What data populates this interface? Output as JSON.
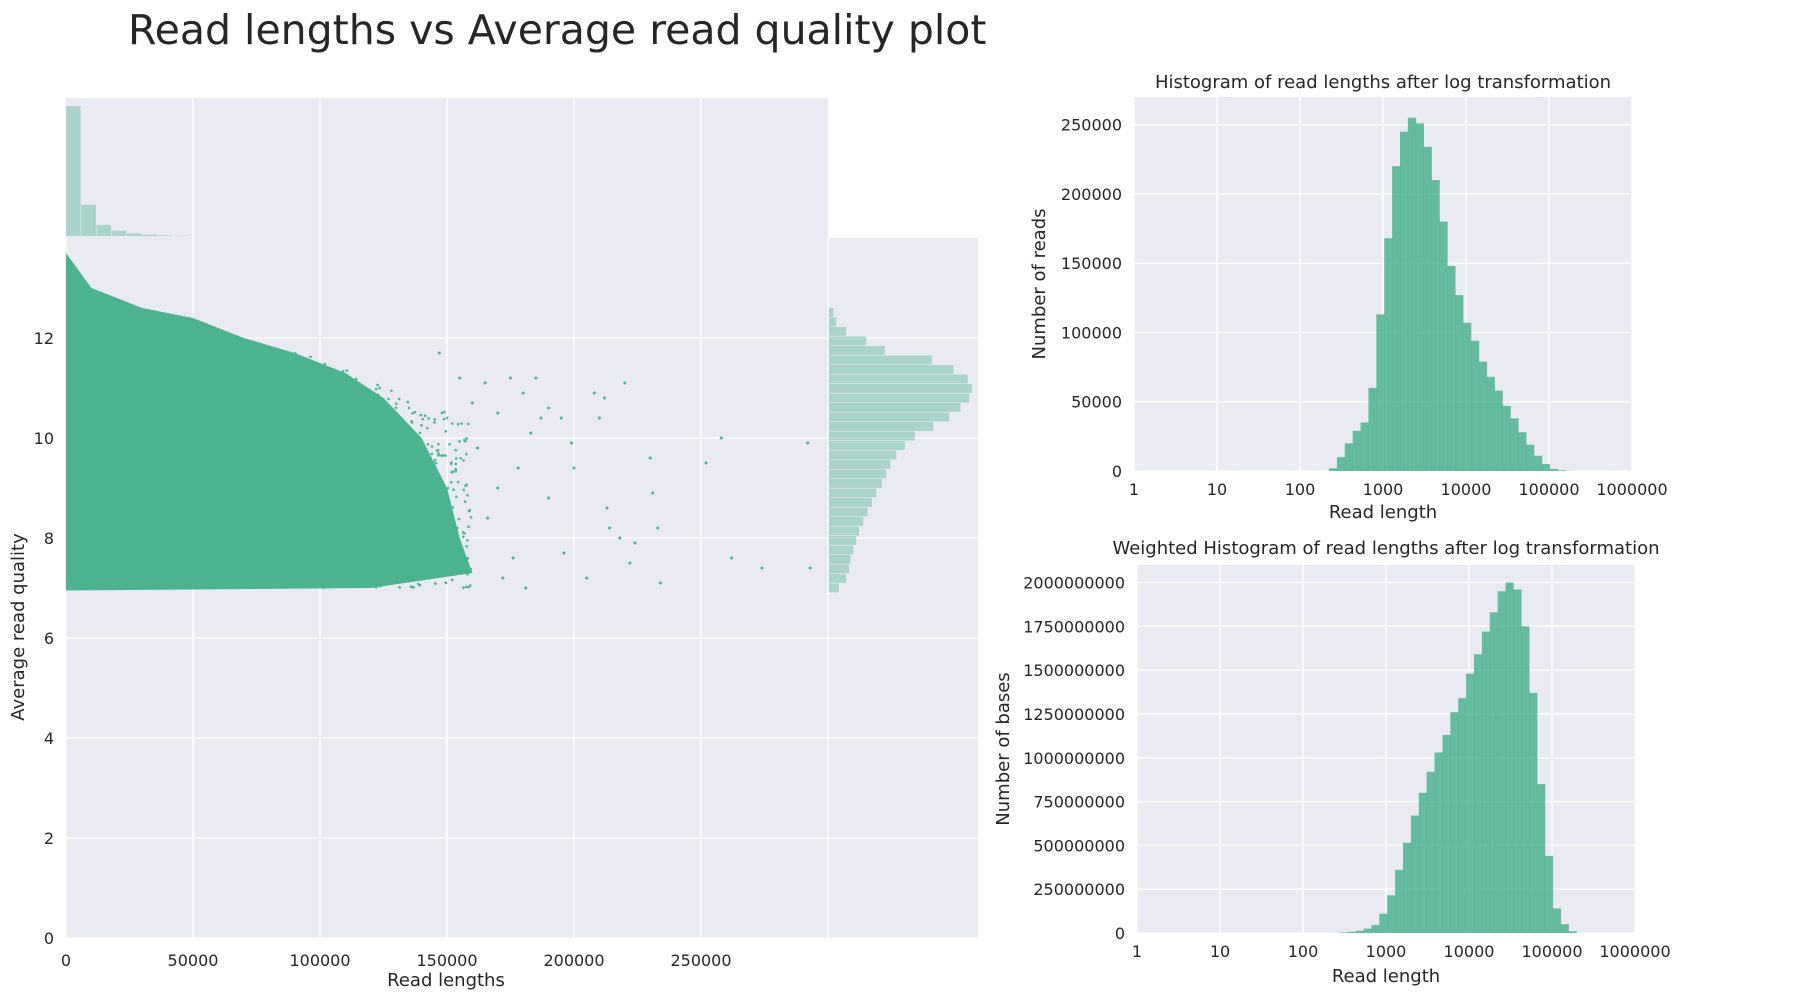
{
  "page_title": "Read lengths vs Average read quality plot",
  "colors": {
    "main": "#4cb391",
    "panel_bg": "#eaeaf2",
    "grid": "#ffffff"
  },
  "chart_data": [
    {
      "id": "scatter",
      "type": "scatter",
      "title": "",
      "xlabel": "Read lengths",
      "ylabel": "Average read quality",
      "xlim": [
        0,
        300000
      ],
      "ylim": [
        0,
        14
      ],
      "x_ticks": [
        0,
        50000,
        100000,
        150000,
        200000,
        250000
      ],
      "x_tick_labels": [
        "0",
        "50000",
        "100000",
        "150000",
        "200000",
        "250000"
      ],
      "y_ticks": [
        0,
        2,
        4,
        6,
        8,
        10,
        12
      ],
      "y_tick_labels": [
        "0",
        "2",
        "4",
        "6",
        "8",
        "10",
        "12"
      ],
      "grid": true,
      "point_color": "#4cb391",
      "dense_region": {
        "description_points": [
          [
            0,
            13.7
          ],
          [
            10000,
            13.0
          ],
          [
            30000,
            12.6
          ],
          [
            50000,
            12.4
          ],
          [
            70000,
            12.0
          ],
          [
            90000,
            11.7
          ],
          [
            110000,
            11.3
          ],
          [
            125000,
            10.8
          ],
          [
            140000,
            10.0
          ],
          [
            150000,
            9.0
          ],
          [
            155000,
            8.0
          ],
          [
            160000,
            7.3
          ],
          [
            120000,
            7.0
          ],
          [
            0,
            6.95
          ]
        ]
      },
      "outliers": [
        [
          147000,
          11.7
        ],
        [
          155000,
          11.2
        ],
        [
          160000,
          10.7
        ],
        [
          165000,
          11.1
        ],
        [
          170000,
          10.5
        ],
        [
          175000,
          11.2
        ],
        [
          180000,
          10.9
        ],
        [
          183000,
          10.1
        ],
        [
          185000,
          11.2
        ],
        [
          187000,
          10.4
        ],
        [
          190000,
          10.6
        ],
        [
          195000,
          10.4
        ],
        [
          199000,
          9.9
        ],
        [
          200000,
          9.4
        ],
        [
          208000,
          10.9
        ],
        [
          210000,
          10.4
        ],
        [
          212000,
          10.8
        ],
        [
          220000,
          11.1
        ],
        [
          218000,
          8.0
        ],
        [
          213000,
          8.6
        ],
        [
          205000,
          7.2
        ],
        [
          196000,
          7.7
        ],
        [
          190000,
          8.8
        ],
        [
          181000,
          7.0
        ],
        [
          178000,
          9.4
        ],
        [
          170000,
          9.0
        ],
        [
          166000,
          8.4
        ],
        [
          162000,
          9.8
        ],
        [
          157000,
          7.5
        ],
        [
          152000,
          8.3
        ],
        [
          176000,
          7.6
        ],
        [
          172000,
          7.2
        ],
        [
          214000,
          8.2
        ],
        [
          222000,
          7.5
        ],
        [
          224000,
          7.9
        ],
        [
          230000,
          9.6
        ],
        [
          231000,
          8.9
        ],
        [
          233000,
          8.2
        ],
        [
          234000,
          7.1
        ],
        [
          252000,
          9.5
        ],
        [
          258000,
          10.0
        ],
        [
          262000,
          7.6
        ],
        [
          274000,
          7.4
        ],
        [
          292000,
          9.9
        ],
        [
          293000,
          7.4
        ]
      ]
    },
    {
      "id": "top_marginal",
      "type": "bar",
      "title": "",
      "orientation": "vertical",
      "description": "marginal distribution of read lengths (relative counts)",
      "bin_width": 6000,
      "bin_starts": [
        0,
        6000,
        12000,
        18000,
        24000,
        30000,
        36000,
        42000
      ],
      "values": [
        1.0,
        0.24,
        0.085,
        0.04,
        0.02,
        0.01,
        0.005,
        0.002
      ]
    },
    {
      "id": "right_marginal",
      "type": "bar",
      "title": "",
      "orientation": "horizontal",
      "description": "marginal distribution of average read quality (relative counts)",
      "bin_width": 0.19,
      "bin_starts": [
        6.9,
        7.09,
        7.28,
        7.47,
        7.66,
        7.85,
        8.04,
        8.23,
        8.42,
        8.61,
        8.8,
        8.99,
        9.18,
        9.37,
        9.56,
        9.75,
        9.94,
        10.13,
        10.32,
        10.51,
        10.7,
        10.89,
        11.08,
        11.27,
        11.46,
        11.65,
        11.84,
        12.03,
        12.22,
        12.41
      ],
      "values": [
        0.07,
        0.12,
        0.14,
        0.15,
        0.17,
        0.19,
        0.21,
        0.24,
        0.27,
        0.3,
        0.33,
        0.37,
        0.4,
        0.43,
        0.47,
        0.53,
        0.6,
        0.73,
        0.84,
        0.92,
        0.98,
        1.0,
        0.97,
        0.87,
        0.72,
        0.39,
        0.26,
        0.12,
        0.05,
        0.03
      ]
    },
    {
      "id": "hist_log",
      "type": "bar",
      "title": "Histogram of read lengths after log transformation",
      "xlabel": "Read length",
      "ylabel": "Number of reads",
      "x_scale": "log",
      "xlim": [
        1,
        1000000
      ],
      "ylim": [
        0,
        270000
      ],
      "x_tick_labels": [
        "1",
        "10",
        "100",
        "1000",
        "10000",
        "100000",
        "1000000"
      ],
      "y_ticks": [
        0,
        50000,
        100000,
        150000,
        200000,
        250000
      ],
      "y_tick_labels": [
        "0",
        "50000",
        "100000",
        "150000",
        "200000",
        "250000"
      ],
      "grid": true,
      "bin_width_log10": 0.095,
      "bin_starts_log10": [
        2.35,
        2.445,
        2.54,
        2.635,
        2.73,
        2.825,
        2.92,
        3.015,
        3.11,
        3.205,
        3.3,
        3.395,
        3.49,
        3.585,
        3.68,
        3.775,
        3.87,
        3.965,
        4.06,
        4.155,
        4.25,
        4.345,
        4.44,
        4.535,
        4.63,
        4.725,
        4.82,
        4.915,
        5.01,
        5.105,
        5.2
      ],
      "values": [
        2000,
        10000,
        20000,
        29000,
        35000,
        60000,
        113000,
        168000,
        220000,
        245000,
        255000,
        251000,
        234000,
        210000,
        180000,
        148000,
        127000,
        107000,
        94000,
        79000,
        68000,
        58000,
        47000,
        38000,
        28000,
        19000,
        11000,
        5000,
        1500,
        500,
        100
      ]
    },
    {
      "id": "weighted_hist_log",
      "type": "bar",
      "title": "Weighted Histogram of read lengths after log transformation",
      "xlabel": "Read length",
      "ylabel": "Number of bases",
      "x_scale": "log",
      "xlim": [
        1,
        1000000
      ],
      "ylim": [
        0,
        2100000000
      ],
      "x_tick_labels": [
        "1",
        "10",
        "100",
        "1000",
        "10000",
        "100000",
        "1000000"
      ],
      "y_ticks": [
        0,
        250000000,
        500000000,
        750000000,
        1000000000,
        1250000000,
        1500000000,
        1750000000,
        2000000000
      ],
      "y_tick_labels": [
        "0",
        "250000000",
        "500000000",
        "750000000",
        "1000000000",
        "1250000000",
        "1500000000",
        "1750000000",
        "2000000000"
      ],
      "grid": true,
      "bin_width_log10": 0.095,
      "bin_starts_log10": [
        2.35,
        2.445,
        2.54,
        2.635,
        2.73,
        2.825,
        2.92,
        3.015,
        3.11,
        3.205,
        3.3,
        3.395,
        3.49,
        3.585,
        3.68,
        3.775,
        3.87,
        3.965,
        4.06,
        4.155,
        4.25,
        4.345,
        4.44,
        4.535,
        4.63,
        4.725,
        4.82,
        4.915,
        5.01,
        5.105,
        5.2
      ],
      "values": [
        1000000,
        3000000,
        7000000,
        13000000,
        25000000,
        45000000,
        110000000,
        215000000,
        360000000,
        515000000,
        670000000,
        800000000,
        920000000,
        1030000000,
        1130000000,
        1260000000,
        1340000000,
        1480000000,
        1590000000,
        1720000000,
        1830000000,
        1950000000,
        2000000000,
        1960000000,
        1750000000,
        1370000000,
        850000000,
        440000000,
        140000000,
        50000000,
        10000000
      ]
    }
  ]
}
